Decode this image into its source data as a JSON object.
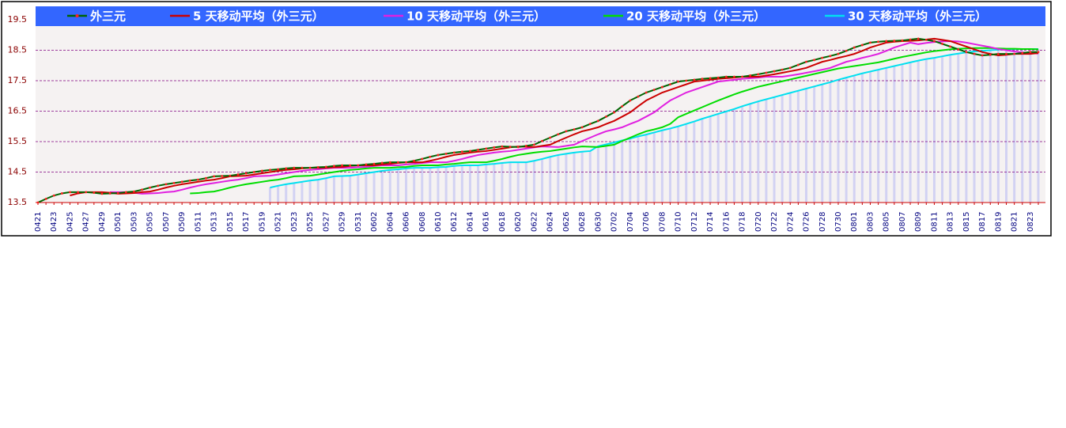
{
  "chart_data": {
    "type": "line",
    "categories": [
      "0421",
      null,
      "0423",
      null,
      "0425",
      null,
      "0427",
      null,
      "0429",
      null,
      "0501",
      null,
      "0503",
      null,
      "0505",
      null,
      "0507",
      null,
      "0509",
      null,
      "0511",
      null,
      "0513",
      null,
      "0515",
      null,
      "0517",
      null,
      "0519",
      null,
      "0521",
      null,
      "0523",
      null,
      "0525",
      null,
      "0527",
      null,
      "0529",
      null,
      "0531",
      null,
      "0602",
      null,
      "0604",
      null,
      "0606",
      null,
      "0608",
      null,
      "0610",
      null,
      "0612",
      null,
      "0614",
      null,
      "0616",
      null,
      "0618",
      null,
      "0620",
      null,
      "0622",
      null,
      "0624",
      null,
      "0626",
      null,
      "0628",
      null,
      "0630",
      null,
      "0702",
      null,
      "0704",
      null,
      "0706",
      null,
      "0708",
      null,
      "0710",
      null,
      "0712",
      null,
      "0714",
      null,
      "0716",
      null,
      "0718",
      null,
      "0720",
      null,
      "0722",
      null,
      "0724",
      null,
      "0726",
      null,
      "0728",
      null,
      "0730",
      null,
      "0801",
      null,
      "0803",
      null,
      "0805",
      null,
      "0807",
      null,
      "0809",
      null,
      "0811",
      null,
      "0813",
      null,
      "0815",
      null,
      "0817",
      null,
      "0819",
      null,
      "0821",
      null,
      "0823",
      null
    ],
    "series": [
      {
        "name": "外三元",
        "color": "#006400",
        "values": [
          13.5,
          13.62,
          13.73,
          13.8,
          13.84,
          13.84,
          13.84,
          13.82,
          13.79,
          13.8,
          13.81,
          13.84,
          13.86,
          13.92,
          13.99,
          14.05,
          14.1,
          14.14,
          14.18,
          14.22,
          14.25,
          14.3,
          14.36,
          14.37,
          14.38,
          14.42,
          14.46,
          14.5,
          14.54,
          14.57,
          14.59,
          14.62,
          14.64,
          14.64,
          14.64,
          14.66,
          14.67,
          14.7,
          14.72,
          14.72,
          14.72,
          14.75,
          14.77,
          14.8,
          14.82,
          14.82,
          14.82,
          14.87,
          14.93,
          15.0,
          15.06,
          15.1,
          15.14,
          15.17,
          15.19,
          15.23,
          15.27,
          15.31,
          15.34,
          15.33,
          15.32,
          15.36,
          15.4,
          15.52,
          15.63,
          15.74,
          15.84,
          15.9,
          15.97,
          16.08,
          16.18,
          16.32,
          16.46,
          16.66,
          16.85,
          16.98,
          17.11,
          17.2,
          17.29,
          17.38,
          17.47,
          17.5,
          17.53,
          17.56,
          17.58,
          17.6,
          17.63,
          17.63,
          17.63,
          17.67,
          17.71,
          17.76,
          17.81,
          17.86,
          17.92,
          18.02,
          18.12,
          18.18,
          18.25,
          18.31,
          18.38,
          18.48,
          18.59,
          18.67,
          18.75,
          18.78,
          18.8,
          18.81,
          18.82,
          18.85,
          18.88,
          18.84,
          18.8,
          18.71,
          18.62,
          18.53,
          18.44,
          18.38,
          18.33,
          18.35,
          18.38,
          18.38,
          18.38,
          18.41,
          18.44,
          18.44
        ]
      },
      {
        "name": "5 天移动平均（外三元）",
        "color": "#cc0000",
        "values": [
          null,
          null,
          null,
          null,
          13.73,
          13.8,
          13.84,
          13.84,
          13.84,
          13.82,
          13.79,
          13.8,
          13.81,
          13.84,
          13.86,
          13.92,
          13.99,
          14.05,
          14.1,
          14.14,
          14.18,
          14.22,
          14.25,
          14.3,
          14.36,
          14.37,
          14.38,
          14.42,
          14.46,
          14.5,
          14.54,
          14.57,
          14.59,
          14.62,
          14.64,
          14.64,
          14.64,
          14.66,
          14.67,
          14.7,
          14.72,
          14.72,
          14.72,
          14.75,
          14.77,
          14.8,
          14.82,
          14.82,
          14.82,
          14.87,
          14.93,
          15.0,
          15.06,
          15.1,
          15.14,
          15.17,
          15.19,
          15.23,
          15.27,
          15.31,
          15.34,
          15.33,
          15.32,
          15.36,
          15.4,
          15.52,
          15.63,
          15.74,
          15.84,
          15.9,
          15.97,
          16.08,
          16.18,
          16.32,
          16.46,
          16.66,
          16.85,
          16.98,
          17.11,
          17.2,
          17.29,
          17.38,
          17.47,
          17.5,
          17.53,
          17.56,
          17.58,
          17.6,
          17.63,
          17.63,
          17.63,
          17.67,
          17.71,
          17.76,
          17.81,
          17.86,
          17.92,
          18.02,
          18.12,
          18.18,
          18.25,
          18.31,
          18.38,
          18.48,
          18.59,
          18.67,
          18.75,
          18.78,
          18.8,
          18.81,
          18.82,
          18.85,
          18.88,
          18.84,
          18.8,
          18.71,
          18.62,
          18.53,
          18.44,
          18.38,
          18.33,
          18.35,
          18.38,
          18.38,
          18.38,
          18.41
        ]
      },
      {
        "name": "10 天移动平均（外三元）",
        "color": "#e020e0",
        "values": [
          null,
          null,
          null,
          null,
          null,
          null,
          null,
          null,
          null,
          13.84,
          13.84,
          13.84,
          13.82,
          13.79,
          13.8,
          13.81,
          13.84,
          13.86,
          13.92,
          13.99,
          14.05,
          14.1,
          14.14,
          14.18,
          14.22,
          14.25,
          14.3,
          14.36,
          14.37,
          14.38,
          14.42,
          14.46,
          14.5,
          14.54,
          14.57,
          14.59,
          14.62,
          14.64,
          14.64,
          14.64,
          14.66,
          14.67,
          14.7,
          14.72,
          14.72,
          14.72,
          14.75,
          14.77,
          14.8,
          14.82,
          14.82,
          14.82,
          14.87,
          14.93,
          15.0,
          15.06,
          15.1,
          15.14,
          15.17,
          15.19,
          15.23,
          15.27,
          15.31,
          15.34,
          15.33,
          15.32,
          15.36,
          15.4,
          15.52,
          15.63,
          15.74,
          15.84,
          15.9,
          15.97,
          16.08,
          16.18,
          16.32,
          16.46,
          16.66,
          16.85,
          16.98,
          17.11,
          17.2,
          17.29,
          17.38,
          17.47,
          17.5,
          17.53,
          17.56,
          17.58,
          17.6,
          17.63,
          17.63,
          17.63,
          17.67,
          17.71,
          17.76,
          17.81,
          17.86,
          17.92,
          18.02,
          18.12,
          18.18,
          18.25,
          18.31,
          18.38,
          18.48,
          18.59,
          18.67,
          18.75,
          18.7,
          18.74,
          18.77,
          18.79,
          18.8,
          18.79,
          18.75,
          18.7,
          18.65,
          18.6,
          18.54,
          18.5,
          18.46,
          18.43,
          18.41,
          18.39
        ]
      },
      {
        "name": "20 天移动平均（外三元）",
        "color": "#00dd00",
        "values": [
          null,
          null,
          null,
          null,
          null,
          null,
          null,
          null,
          null,
          null,
          null,
          null,
          null,
          null,
          null,
          null,
          null,
          null,
          null,
          13.8,
          13.81,
          13.84,
          13.86,
          13.92,
          13.99,
          14.05,
          14.1,
          14.14,
          14.18,
          14.22,
          14.25,
          14.3,
          14.36,
          14.37,
          14.38,
          14.42,
          14.46,
          14.5,
          14.54,
          14.57,
          14.59,
          14.62,
          14.64,
          14.64,
          14.64,
          14.66,
          14.67,
          14.7,
          14.72,
          14.72,
          14.72,
          14.75,
          14.77,
          14.8,
          14.82,
          14.82,
          14.82,
          14.87,
          14.93,
          15.0,
          15.06,
          15.1,
          15.14,
          15.17,
          15.19,
          15.23,
          15.27,
          15.31,
          15.34,
          15.33,
          15.32,
          15.36,
          15.4,
          15.52,
          15.63,
          15.74,
          15.84,
          15.9,
          15.97,
          16.08,
          16.3,
          16.41,
          16.52,
          16.63,
          16.74,
          16.85,
          16.95,
          17.05,
          17.14,
          17.22,
          17.3,
          17.36,
          17.42,
          17.48,
          17.54,
          17.6,
          17.66,
          17.72,
          17.78,
          17.84,
          17.9,
          17.94,
          17.98,
          18.02,
          18.06,
          18.1,
          18.16,
          18.22,
          18.28,
          18.33,
          18.38,
          18.43,
          18.47,
          18.5,
          18.53,
          18.55,
          18.56,
          18.57,
          18.57,
          18.57,
          18.56,
          18.55,
          18.55,
          18.54,
          18.54,
          18.53
        ]
      },
      {
        "name": "30 天移动平均（外三元）",
        "color": "#00e0f0",
        "values": [
          null,
          null,
          null,
          null,
          null,
          null,
          null,
          null,
          null,
          null,
          null,
          null,
          null,
          null,
          null,
          null,
          null,
          null,
          null,
          null,
          null,
          null,
          null,
          null,
          null,
          null,
          null,
          null,
          null,
          13.99,
          14.05,
          14.1,
          14.14,
          14.18,
          14.22,
          14.25,
          14.3,
          14.36,
          14.37,
          14.38,
          14.42,
          14.46,
          14.5,
          14.54,
          14.57,
          14.59,
          14.62,
          14.64,
          14.64,
          14.64,
          14.66,
          14.67,
          14.7,
          14.72,
          14.72,
          14.72,
          14.75,
          14.77,
          14.8,
          14.82,
          14.82,
          14.82,
          14.87,
          14.93,
          15.0,
          15.06,
          15.1,
          15.14,
          15.17,
          15.19,
          15.35,
          15.41,
          15.47,
          15.54,
          15.6,
          15.67,
          15.73,
          15.8,
          15.87,
          15.93,
          16.0,
          16.08,
          16.16,
          16.25,
          16.33,
          16.41,
          16.49,
          16.57,
          16.66,
          16.74,
          16.82,
          16.89,
          16.96,
          17.03,
          17.1,
          17.17,
          17.24,
          17.31,
          17.38,
          17.45,
          17.53,
          17.6,
          17.67,
          17.74,
          17.8,
          17.86,
          17.92,
          17.98,
          18.04,
          18.1,
          18.16,
          18.21,
          18.25,
          18.3,
          18.35,
          18.39,
          18.43,
          18.46,
          18.48,
          18.5,
          18.52,
          18.53,
          18.54,
          18.54,
          18.54,
          18.54
        ]
      }
    ],
    "ylim": [
      13.5,
      19.5
    ],
    "yticks": [
      13.5,
      14.5,
      15.5,
      16.5,
      17.5,
      18.5,
      19.5
    ],
    "grid": true,
    "legend": "top"
  }
}
